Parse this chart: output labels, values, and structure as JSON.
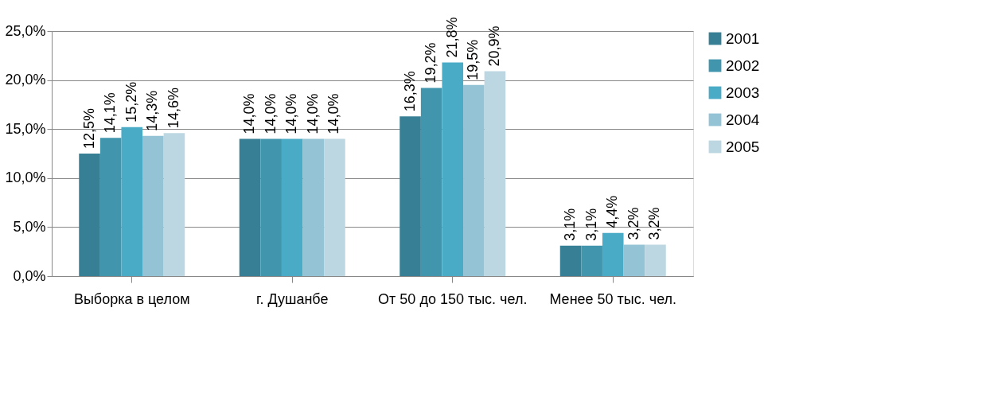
{
  "chart_data": {
    "type": "bar",
    "categories": [
      "Выборка в целом",
      "г. Душанбе",
      "От 50 до 150 тыс. чел.",
      "Менее 50 тыс. чел."
    ],
    "series": [
      {
        "name": "2001",
        "color": "#377f94",
        "values": [
          12.5,
          14.0,
          16.3,
          3.1
        ],
        "value_labels": [
          "12,5%",
          "14,0%",
          "16,3%",
          "3,1%"
        ]
      },
      {
        "name": "2002",
        "color": "#4196ae",
        "values": [
          14.1,
          14.0,
          19.2,
          3.1
        ],
        "value_labels": [
          "14,1%",
          "14,0%",
          "19,2%",
          "3,1%"
        ]
      },
      {
        "name": "2003",
        "color": "#4aabc6",
        "values": [
          15.2,
          14.0,
          21.8,
          4.4
        ],
        "value_labels": [
          "15,2%",
          "14,0%",
          "21,8%",
          "4,4%"
        ]
      },
      {
        "name": "2004",
        "color": "#93c3d4",
        "values": [
          14.3,
          14.0,
          19.5,
          3.2
        ],
        "value_labels": [
          "14,3%",
          "14,0%",
          "19,5%",
          "3,2%"
        ]
      },
      {
        "name": "2005",
        "color": "#bcd7e2",
        "values": [
          14.6,
          14.0,
          20.9,
          3.2
        ],
        "value_labels": [
          "14,6%",
          "14,0%",
          "20,9%",
          "3,2%"
        ]
      }
    ],
    "ylim": [
      0,
      25
    ],
    "yticks": [
      {
        "value": 0,
        "label": "0,0%"
      },
      {
        "value": 5,
        "label": "5,0%"
      },
      {
        "value": 10,
        "label": "10,0%"
      },
      {
        "value": 15,
        "label": "15,0%"
      },
      {
        "value": 20,
        "label": "20,0%"
      },
      {
        "value": 25,
        "label": "25,0%"
      }
    ],
    "grid": "y",
    "legend": "right"
  }
}
